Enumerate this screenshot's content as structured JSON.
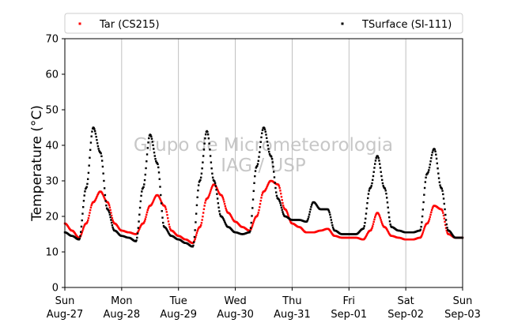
{
  "chart_data": {
    "type": "scatter",
    "title": "",
    "xlabel": "",
    "ylabel": "Temperature (°C)",
    "ylim": [
      0,
      70
    ],
    "yticks": [
      0,
      10,
      20,
      30,
      40,
      50,
      60,
      70
    ],
    "xlim": [
      "2017-08-27",
      "2017-09-03"
    ],
    "xticks": [
      {
        "day": "Sun",
        "date": "Aug-27"
      },
      {
        "day": "Mon",
        "date": "Aug-28"
      },
      {
        "day": "Tue",
        "date": "Aug-29"
      },
      {
        "day": "Wed",
        "date": "Aug-30"
      },
      {
        "day": "Thu",
        "date": "Aug-31"
      },
      {
        "day": "Fri",
        "date": "Sep-01"
      },
      {
        "day": "Sat",
        "date": "Sep-02"
      },
      {
        "day": "Sun",
        "date": "Sep-03"
      }
    ],
    "grid": "x",
    "legend_position": "top",
    "watermark": [
      "Grupo de Micrometeorologia",
      "IAG / USP"
    ],
    "series": [
      {
        "name": "Tar (CS215)",
        "color": "#ff0000",
        "points": [
          [
            "2017-08-27 00:00",
            18.0
          ],
          [
            "2017-08-27 03:00",
            16.0
          ],
          [
            "2017-08-27 06:00",
            14.0
          ],
          [
            "2017-08-27 09:00",
            18.0
          ],
          [
            "2017-08-27 12:00",
            24.0
          ],
          [
            "2017-08-27 15:00",
            27.0
          ],
          [
            "2017-08-27 18:00",
            24.0
          ],
          [
            "2017-08-27 21:00",
            18.0
          ],
          [
            "2017-08-28 00:00",
            16.0
          ],
          [
            "2017-08-28 03:00",
            15.5
          ],
          [
            "2017-08-28 06:00",
            15.0
          ],
          [
            "2017-08-28 09:00",
            18.0
          ],
          [
            "2017-08-28 12:00",
            23.0
          ],
          [
            "2017-08-28 15:00",
            26.0
          ],
          [
            "2017-08-28 18:00",
            23.0
          ],
          [
            "2017-08-28 21:00",
            16.0
          ],
          [
            "2017-08-29 00:00",
            14.5
          ],
          [
            "2017-08-29 03:00",
            13.5
          ],
          [
            "2017-08-29 06:00",
            12.5
          ],
          [
            "2017-08-29 09:00",
            17.0
          ],
          [
            "2017-08-29 12:00",
            25.0
          ],
          [
            "2017-08-29 15:00",
            29.0
          ],
          [
            "2017-08-29 18:00",
            26.0
          ],
          [
            "2017-08-29 21:00",
            21.0
          ],
          [
            "2017-08-30 00:00",
            18.5
          ],
          [
            "2017-08-30 03:00",
            17.0
          ],
          [
            "2017-08-30 06:00",
            16.0
          ],
          [
            "2017-08-30 09:00",
            20.0
          ],
          [
            "2017-08-30 12:00",
            27.0
          ],
          [
            "2017-08-30 15:00",
            30.0
          ],
          [
            "2017-08-30 18:00",
            29.0
          ],
          [
            "2017-08-30 21:00",
            22.0
          ],
          [
            "2017-08-31 00:00",
            18.0
          ],
          [
            "2017-08-31 03:00",
            17.0
          ],
          [
            "2017-08-31 06:00",
            15.5
          ],
          [
            "2017-08-31 09:00",
            15.5
          ],
          [
            "2017-08-31 12:00",
            16.0
          ],
          [
            "2017-08-31 15:00",
            16.5
          ],
          [
            "2017-08-31 18:00",
            14.5
          ],
          [
            "2017-08-31 21:00",
            14.0
          ],
          [
            "2017-09-01 00:00",
            14.0
          ],
          [
            "2017-09-01 03:00",
            14.0
          ],
          [
            "2017-09-01 06:00",
            13.5
          ],
          [
            "2017-09-01 09:00",
            16.0
          ],
          [
            "2017-09-01 12:00",
            21.0
          ],
          [
            "2017-09-01 15:00",
            17.0
          ],
          [
            "2017-09-01 18:00",
            14.5
          ],
          [
            "2017-09-01 21:00",
            14.0
          ],
          [
            "2017-09-02 00:00",
            13.5
          ],
          [
            "2017-09-02 03:00",
            13.5
          ],
          [
            "2017-09-02 06:00",
            14.0
          ],
          [
            "2017-09-02 09:00",
            18.0
          ],
          [
            "2017-09-02 12:00",
            23.0
          ],
          [
            "2017-09-02 15:00",
            22.0
          ],
          [
            "2017-09-02 18:00",
            15.0
          ],
          [
            "2017-09-02 21:00",
            14.0
          ],
          [
            "2017-09-03 00:00",
            14.0
          ]
        ]
      },
      {
        "name": "TSurface (SI-111)",
        "color": "#000000",
        "points": [
          [
            "2017-08-27 00:00",
            15.5
          ],
          [
            "2017-08-27 03:00",
            14.5
          ],
          [
            "2017-08-27 06:00",
            13.5
          ],
          [
            "2017-08-27 09:00",
            28.0
          ],
          [
            "2017-08-27 12:00",
            45.0
          ],
          [
            "2017-08-27 15:00",
            38.0
          ],
          [
            "2017-08-27 18:00",
            22.0
          ],
          [
            "2017-08-27 21:00",
            16.0
          ],
          [
            "2017-08-28 00:00",
            14.5
          ],
          [
            "2017-08-28 03:00",
            14.0
          ],
          [
            "2017-08-28 06:00",
            13.0
          ],
          [
            "2017-08-28 09:00",
            28.0
          ],
          [
            "2017-08-28 12:00",
            43.0
          ],
          [
            "2017-08-28 15:00",
            35.0
          ],
          [
            "2017-08-28 18:00",
            17.0
          ],
          [
            "2017-08-28 21:00",
            14.5
          ],
          [
            "2017-08-29 00:00",
            13.5
          ],
          [
            "2017-08-29 03:00",
            12.5
          ],
          [
            "2017-08-29 06:00",
            11.5
          ],
          [
            "2017-08-29 09:00",
            30.0
          ],
          [
            "2017-08-29 12:00",
            44.0
          ],
          [
            "2017-08-29 15:00",
            30.0
          ],
          [
            "2017-08-29 18:00",
            20.0
          ],
          [
            "2017-08-29 21:00",
            17.0
          ],
          [
            "2017-08-30 00:00",
            15.5
          ],
          [
            "2017-08-30 03:00",
            15.0
          ],
          [
            "2017-08-30 06:00",
            15.5
          ],
          [
            "2017-08-30 09:00",
            34.0
          ],
          [
            "2017-08-30 12:00",
            45.0
          ],
          [
            "2017-08-30 15:00",
            37.0
          ],
          [
            "2017-08-30 18:00",
            25.0
          ],
          [
            "2017-08-30 21:00",
            20.0
          ],
          [
            "2017-08-31 00:00",
            19.0
          ],
          [
            "2017-08-31 03:00",
            19.0
          ],
          [
            "2017-08-31 06:00",
            18.5
          ],
          [
            "2017-08-31 09:00",
            24.0
          ],
          [
            "2017-08-31 12:00",
            22.0
          ],
          [
            "2017-08-31 15:00",
            22.0
          ],
          [
            "2017-08-31 18:00",
            16.0
          ],
          [
            "2017-08-31 21:00",
            15.0
          ],
          [
            "2017-09-01 00:00",
            15.0
          ],
          [
            "2017-09-01 03:00",
            15.0
          ],
          [
            "2017-09-01 06:00",
            16.5
          ],
          [
            "2017-09-01 09:00",
            28.0
          ],
          [
            "2017-09-01 12:00",
            37.0
          ],
          [
            "2017-09-01 15:00",
            28.0
          ],
          [
            "2017-09-01 18:00",
            17.0
          ],
          [
            "2017-09-01 21:00",
            16.0
          ],
          [
            "2017-09-02 00:00",
            15.5
          ],
          [
            "2017-09-02 03:00",
            15.5
          ],
          [
            "2017-09-02 06:00",
            16.0
          ],
          [
            "2017-09-02 09:00",
            32.0
          ],
          [
            "2017-09-02 12:00",
            39.0
          ],
          [
            "2017-09-02 15:00",
            28.0
          ],
          [
            "2017-09-02 18:00",
            16.0
          ],
          [
            "2017-09-02 21:00",
            14.0
          ],
          [
            "2017-09-03 00:00",
            14.0
          ]
        ]
      }
    ]
  }
}
